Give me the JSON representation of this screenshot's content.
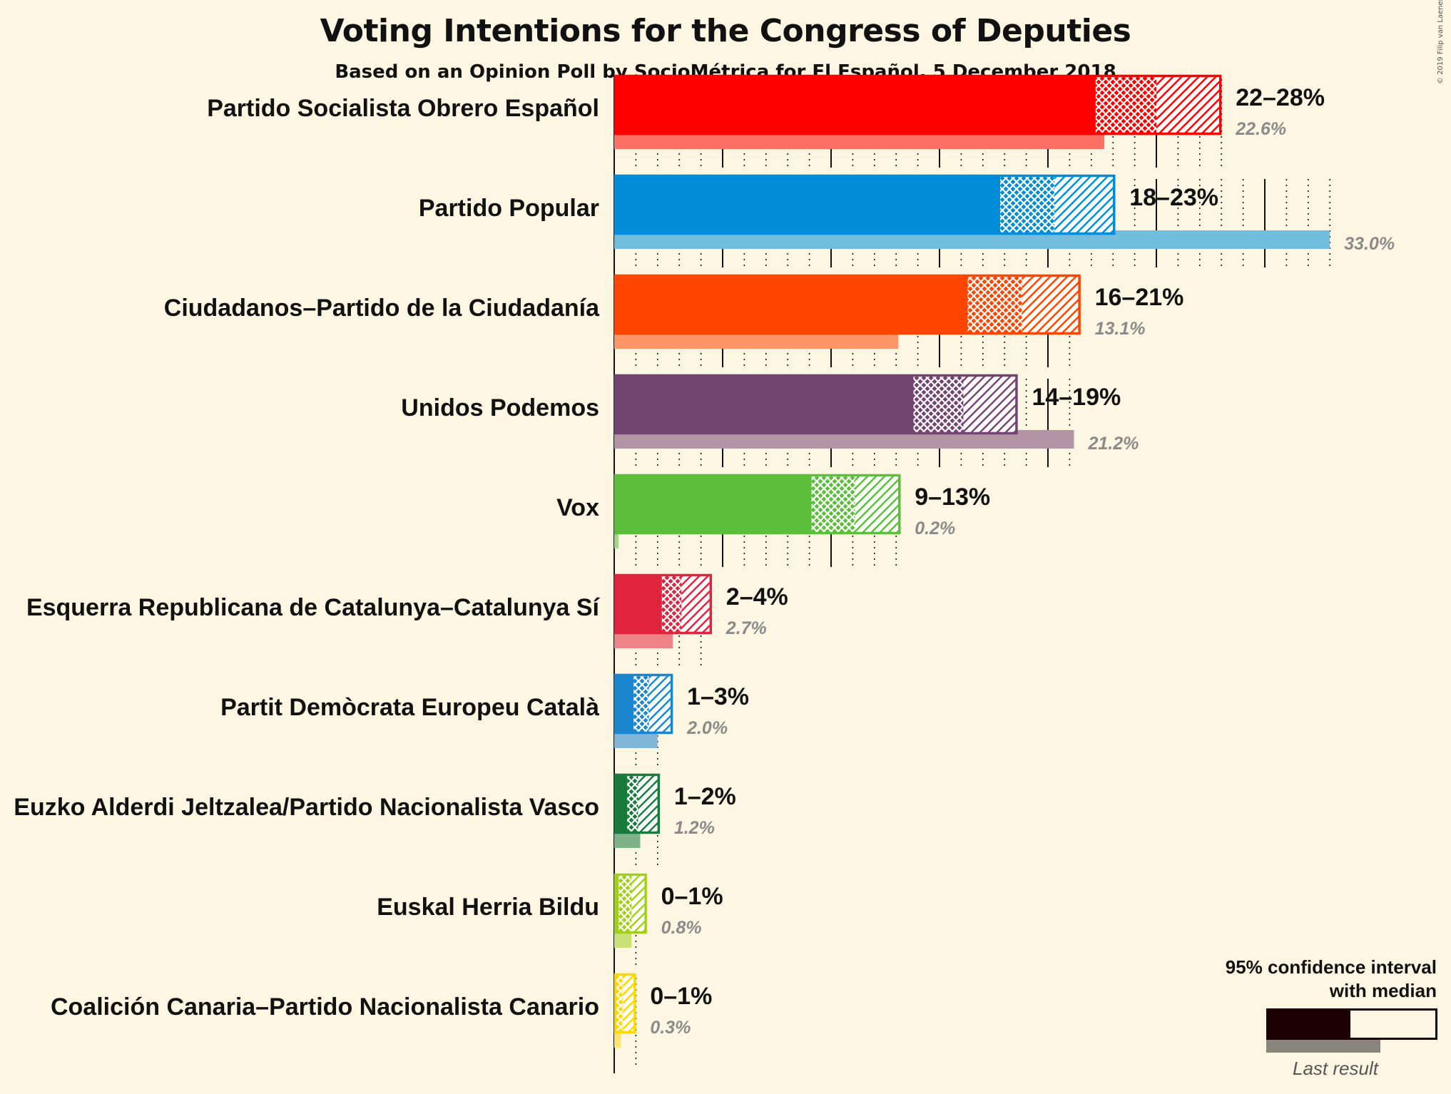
{
  "title": "Voting Intentions for the Congress of Deputies",
  "subtitle": "Based on an Opinion Poll by SocioMétrica for El Español, 5 December 2018",
  "copyright": "© 2019 Filip van Laenen",
  "legend": {
    "title_line1": "95% confidence interval",
    "title_line2": "with median",
    "last_result": "Last result"
  },
  "chart_data": {
    "type": "bar",
    "orientation": "horizontal",
    "unit": "%",
    "xlim": [
      0,
      34
    ],
    "gridlines": {
      "major_every": 5,
      "minor_every": 1
    },
    "series": [
      {
        "name": "95% confidence interval",
        "kind": "range"
      },
      {
        "name": "Last result",
        "kind": "value"
      }
    ],
    "parties": [
      {
        "name": "Partido Socialista Obrero Español",
        "color": "#ff0000",
        "low": 22.2,
        "median": 25.0,
        "high": 28.0,
        "label": "22–28%",
        "last": 22.6,
        "last_label": "22.6%"
      },
      {
        "name": "Partido Popular",
        "color": "#008cd9",
        "low": 17.8,
        "median": 20.3,
        "high": 23.1,
        "label": "18–23%",
        "last": 33.0,
        "last_label": "33.0%"
      },
      {
        "name": "Ciudadanos–Partido de la Ciudadanía",
        "color": "#ff4500",
        "low": 16.3,
        "median": 18.8,
        "high": 21.5,
        "label": "16–21%",
        "last": 13.1,
        "last_label": "13.1%"
      },
      {
        "name": "Unidos Podemos",
        "color": "#744470",
        "low": 13.8,
        "median": 16.1,
        "high": 18.6,
        "label": "14–19%",
        "last": 21.2,
        "last_label": "21.2%"
      },
      {
        "name": "Vox",
        "color": "#5cbf3b",
        "low": 9.1,
        "median": 11.1,
        "high": 13.2,
        "label": "9–13%",
        "last": 0.2,
        "last_label": "0.2%"
      },
      {
        "name": "Esquerra Republicana de Catalunya–Catalunya Sí",
        "color": "#e0243e",
        "low": 2.2,
        "median": 3.1,
        "high": 4.5,
        "label": "2–4%",
        "last": 2.7,
        "last_label": "2.7%"
      },
      {
        "name": "Partit Demòcrata Europeu Català",
        "color": "#1b86d0",
        "low": 0.9,
        "median": 1.6,
        "high": 2.7,
        "label": "1–3%",
        "last": 2.0,
        "last_label": "2.0%"
      },
      {
        "name": "Euzko Alderdi Jeltzalea/Partido Nacionalista Vasco",
        "color": "#1a7a3c",
        "low": 0.6,
        "median": 1.1,
        "high": 2.1,
        "label": "1–2%",
        "last": 1.2,
        "last_label": "1.2%"
      },
      {
        "name": "Euskal Herria Bildu",
        "color": "#a1cf1c",
        "low": 0.2,
        "median": 0.8,
        "high": 1.5,
        "label": "0–1%",
        "last": 0.8,
        "last_label": "0.8%"
      },
      {
        "name": "Coalición Canaria–Partido Nacionalista Canario",
        "color": "#ffd700",
        "low": 0.1,
        "median": 0.4,
        "high": 1.0,
        "label": "0–1%",
        "last": 0.3,
        "last_label": "0.3%"
      }
    ]
  }
}
